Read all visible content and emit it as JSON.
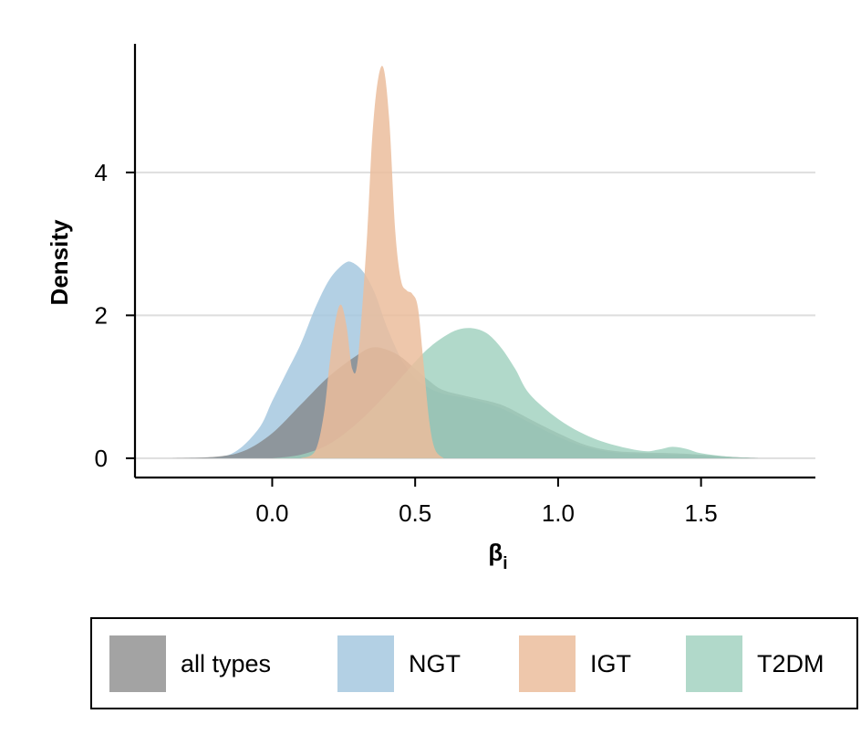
{
  "chart_data": {
    "type": "area",
    "xlabel_main": "β",
    "xlabel_sub": "i",
    "ylabel": "Density",
    "xlim": [
      -0.48,
      1.9
    ],
    "ylim": [
      -0.27,
      5.8
    ],
    "xticks": [
      0.0,
      0.5,
      1.0,
      1.5
    ],
    "xtick_labels": [
      "0.0",
      "0.5",
      "1.0",
      "1.5"
    ],
    "yticks": [
      0,
      2,
      4
    ],
    "ytick_labels": [
      "0",
      "2",
      "4"
    ],
    "grid": "horizontal",
    "legend_position": "bottom",
    "series": [
      {
        "name": "all types",
        "color": "#7f7f7f",
        "opacity": 0.72,
        "x": [
          -0.35,
          -0.2,
          -0.1,
          0.0,
          0.1,
          0.2,
          0.3,
          0.35,
          0.4,
          0.45,
          0.5,
          0.55,
          0.6,
          0.7,
          0.8,
          0.9,
          1.0,
          1.1,
          1.2,
          1.3,
          1.4,
          1.5,
          1.6,
          1.7
        ],
        "y": [
          0.0,
          0.02,
          0.1,
          0.35,
          0.75,
          1.15,
          1.45,
          1.55,
          1.52,
          1.42,
          1.25,
          1.08,
          0.95,
          0.85,
          0.75,
          0.55,
          0.35,
          0.18,
          0.1,
          0.08,
          0.07,
          0.05,
          0.02,
          0.0
        ]
      },
      {
        "name": "NGT",
        "color": "#a6c8df",
        "opacity": 0.85,
        "x": [
          -0.3,
          -0.15,
          -0.05,
          0.0,
          0.05,
          0.1,
          0.15,
          0.2,
          0.25,
          0.28,
          0.32,
          0.36,
          0.4,
          0.45,
          0.5,
          0.55,
          0.6,
          0.7,
          0.8,
          0.9,
          1.0,
          1.1,
          1.2,
          1.3,
          1.4,
          1.5,
          1.6
        ],
        "y": [
          0.0,
          0.05,
          0.4,
          0.8,
          1.2,
          1.6,
          2.1,
          2.5,
          2.72,
          2.74,
          2.6,
          2.3,
          1.85,
          1.4,
          1.12,
          0.98,
          0.9,
          0.82,
          0.7,
          0.5,
          0.3,
          0.15,
          0.08,
          0.06,
          0.05,
          0.04,
          0.0
        ]
      },
      {
        "name": "IGT",
        "color": "#ebbd9c",
        "opacity": 0.85,
        "x": [
          0.1,
          0.15,
          0.18,
          0.2,
          0.22,
          0.24,
          0.26,
          0.28,
          0.3,
          0.33,
          0.35,
          0.37,
          0.39,
          0.41,
          0.43,
          0.45,
          0.47,
          0.49,
          0.51,
          0.53,
          0.55,
          0.57,
          0.6
        ],
        "y": [
          0.0,
          0.1,
          0.6,
          1.3,
          1.9,
          2.15,
          1.85,
          1.25,
          1.4,
          3.0,
          4.5,
          5.3,
          5.45,
          4.7,
          3.2,
          2.5,
          2.35,
          2.3,
          2.1,
          1.3,
          0.5,
          0.12,
          0.0
        ]
      },
      {
        "name": "T2DM",
        "color": "#9ecfbd",
        "opacity": 0.8,
        "x": [
          0.0,
          0.1,
          0.2,
          0.3,
          0.4,
          0.5,
          0.55,
          0.6,
          0.65,
          0.7,
          0.75,
          0.8,
          0.85,
          0.9,
          1.0,
          1.1,
          1.2,
          1.3,
          1.35,
          1.4,
          1.45,
          1.5,
          1.6,
          1.7
        ],
        "y": [
          0.0,
          0.05,
          0.2,
          0.5,
          0.9,
          1.35,
          1.55,
          1.7,
          1.8,
          1.82,
          1.75,
          1.55,
          1.25,
          0.9,
          0.55,
          0.32,
          0.18,
          0.1,
          0.12,
          0.16,
          0.13,
          0.07,
          0.02,
          0.0
        ]
      }
    ]
  }
}
